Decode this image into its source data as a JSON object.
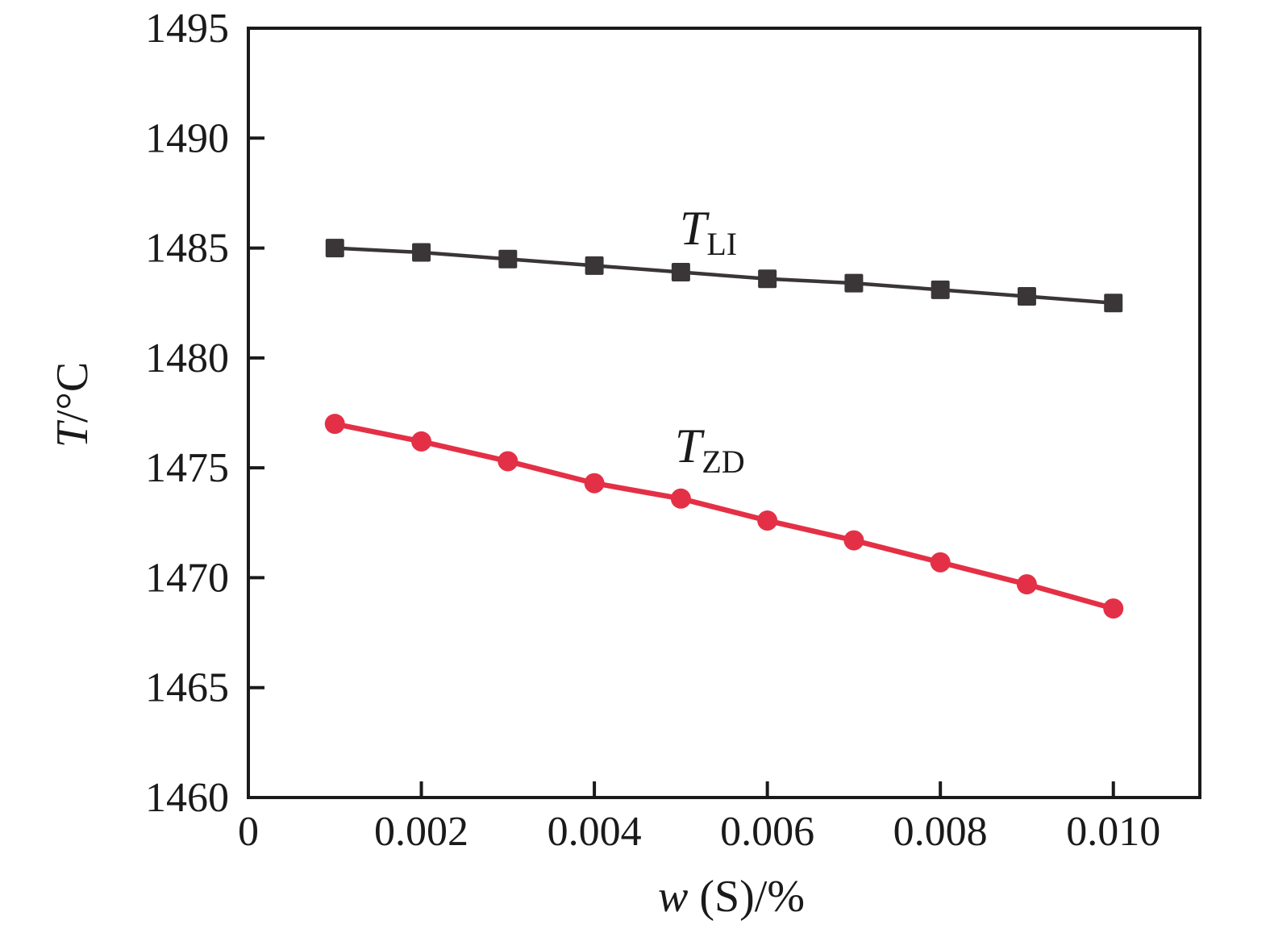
{
  "chart_data": {
    "type": "line",
    "title": "",
    "xlabel": {
      "symbol": "w",
      "rest": " (S)/%"
    },
    "ylabel": {
      "symbol": "T",
      "rest": "/°C"
    },
    "xlim": [
      0,
      0.011
    ],
    "ylim": [
      1460,
      1495
    ],
    "grid": false,
    "legend": "inline-labels",
    "x_ticks": [
      0,
      0.002,
      0.004,
      0.006,
      0.008,
      0.01
    ],
    "x_tick_labels": [
      "0",
      "0.002",
      "0.004",
      "0.006",
      "0.008",
      "0.010"
    ],
    "y_ticks": [
      1460,
      1465,
      1470,
      1475,
      1480,
      1485,
      1490,
      1495
    ],
    "y_tick_labels": [
      "1460",
      "1465",
      "1470",
      "1475",
      "1480",
      "1485",
      "1490",
      "1495"
    ],
    "x": [
      0.001,
      0.002,
      0.003,
      0.004,
      0.005,
      0.006,
      0.007,
      0.008,
      0.009,
      0.01
    ],
    "series": [
      {
        "name": "TLI",
        "label": {
          "symbol": "T",
          "sub": "LI"
        },
        "marker": "square",
        "color": "#3a3536",
        "values": [
          1485.0,
          1484.8,
          1484.5,
          1484.2,
          1483.9,
          1483.6,
          1483.4,
          1483.1,
          1482.8,
          1482.5
        ]
      },
      {
        "name": "TZD",
        "label": {
          "symbol": "T",
          "sub": "ZD"
        },
        "marker": "circle",
        "color": "#e43046",
        "values": [
          1477.0,
          1476.2,
          1475.3,
          1474.3,
          1473.6,
          1472.6,
          1471.7,
          1470.7,
          1469.7,
          1468.6
        ]
      }
    ]
  },
  "colors": {
    "axis": "#1a1a1a",
    "background": "#ffffff",
    "series_tli": "#3a3536",
    "series_tzd": "#e43046"
  }
}
